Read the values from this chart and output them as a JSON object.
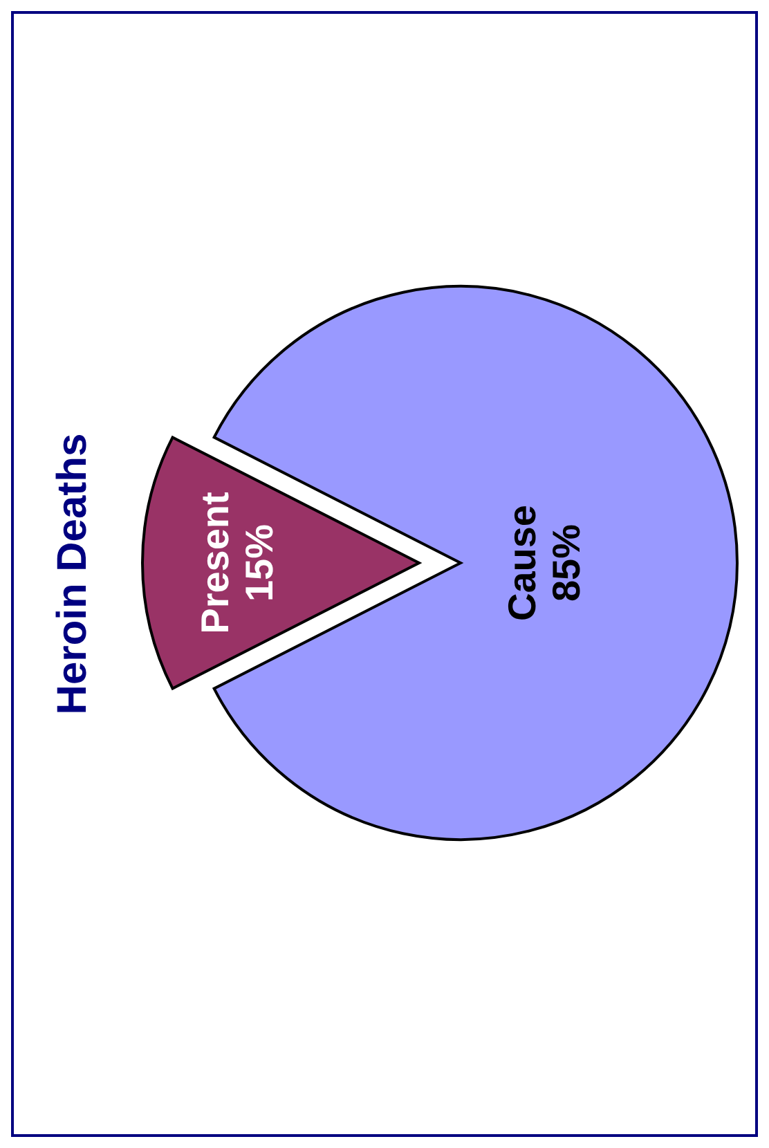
{
  "chart_data": {
    "type": "pie",
    "title": "Heroin Deaths",
    "categories": [
      "Present",
      "Cause"
    ],
    "values": [
      15,
      85
    ],
    "value_labels": [
      "15%",
      "85%"
    ],
    "colors": [
      "#993366",
      "#9999ff"
    ]
  }
}
